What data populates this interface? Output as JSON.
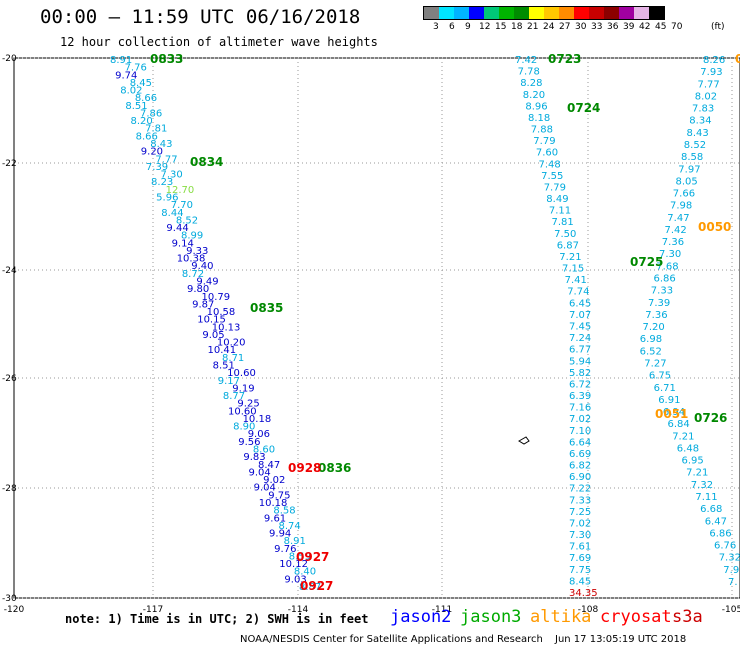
{
  "header": {
    "title": "00:00 – 11:59 UTC 06/16/2018",
    "subtitle": "12 hour collection of altimeter wave heights"
  },
  "legend": {
    "colors": [
      "#808080",
      "#00e5ff",
      "#00b4ff",
      "#0000ff",
      "#00c878",
      "#00b400",
      "#008c00",
      "#ffff00",
      "#ffc800",
      "#ff8c00",
      "#ff0000",
      "#c80000",
      "#8c0000",
      "#a000a0",
      "#e6b4e6",
      "#000000"
    ],
    "labels": [
      "3",
      "6",
      "9",
      "12",
      "15",
      "18",
      "21",
      "24",
      "27",
      "30",
      "33",
      "36",
      "39",
      "42",
      "45",
      "70",
      "(ft)"
    ]
  },
  "map": {
    "lat_labels": [
      "-20",
      "-22",
      "-24",
      "-26",
      "-28",
      "-30"
    ],
    "lon_labels": [
      "-120",
      "-117",
      "-114",
      "-111",
      "-108",
      "-105"
    ],
    "colors": {
      "cyan": "#00aadd",
      "blue": "#0000cc",
      "green": "#008800",
      "red": "#ee0000",
      "orange": "#ff9900",
      "lightgreen": "#88dd44",
      "darkred": "#cc0000"
    },
    "pass_labels": [
      {
        "t": "0833",
        "c": "green"
      },
      {
        "t": "0834",
        "c": "green"
      },
      {
        "t": "0835",
        "c": "green"
      },
      {
        "t": "0836",
        "c": "green"
      },
      {
        "t": "0928",
        "c": "red"
      },
      {
        "t": "0927",
        "c": "red"
      },
      {
        "t": "0927",
        "c": "red"
      },
      {
        "t": "0723",
        "c": "green"
      },
      {
        "t": "0724",
        "c": "green"
      },
      {
        "t": "0725",
        "c": "green"
      },
      {
        "t": "0726",
        "c": "green"
      },
      {
        "t": "0050",
        "c": "orange"
      },
      {
        "t": "0051",
        "c": "orange"
      },
      {
        "t": "0",
        "c": "orange"
      }
    ],
    "swh_track_a": [
      {
        "v": "8.91",
        "c": "cyan"
      },
      {
        "v": "7.76",
        "c": "cyan"
      },
      {
        "v": "9.74",
        "c": "blue"
      },
      {
        "v": "8.45",
        "c": "cyan"
      },
      {
        "v": "8.02",
        "c": "cyan"
      },
      {
        "v": "8.66",
        "c": "cyan"
      },
      {
        "v": "8.51",
        "c": "cyan"
      },
      {
        "v": "7.86",
        "c": "cyan"
      },
      {
        "v": "8.20",
        "c": "cyan"
      },
      {
        "v": "7.81",
        "c": "cyan"
      },
      {
        "v": "8.66",
        "c": "cyan"
      },
      {
        "v": "8.43",
        "c": "cyan"
      },
      {
        "v": "9.20",
        "c": "blue"
      },
      {
        "v": "7.77",
        "c": "cyan"
      },
      {
        "v": "7.39",
        "c": "cyan"
      },
      {
        "v": "7.30",
        "c": "cyan"
      },
      {
        "v": "8.23",
        "c": "cyan"
      },
      {
        "v": "12.70",
        "c": "lightgreen"
      },
      {
        "v": "5.96",
        "c": "cyan"
      },
      {
        "v": "7.70",
        "c": "cyan"
      },
      {
        "v": "8.44",
        "c": "cyan"
      },
      {
        "v": "8.52",
        "c": "cyan"
      },
      {
        "v": "9.44",
        "c": "blue"
      },
      {
        "v": "8.99",
        "c": "cyan"
      },
      {
        "v": "9.14",
        "c": "blue"
      },
      {
        "v": "9.33",
        "c": "blue"
      },
      {
        "v": "10.38",
        "c": "blue"
      },
      {
        "v": "9.40",
        "c": "blue"
      },
      {
        "v": "8.72",
        "c": "cyan"
      },
      {
        "v": "9.49",
        "c": "blue"
      },
      {
        "v": "9.80",
        "c": "blue"
      },
      {
        "v": "10.79",
        "c": "blue"
      },
      {
        "v": "9.87",
        "c": "blue"
      },
      {
        "v": "10.58",
        "c": "blue"
      },
      {
        "v": "10.15",
        "c": "blue"
      },
      {
        "v": "10.13",
        "c": "blue"
      },
      {
        "v": "9.05",
        "c": "blue"
      },
      {
        "v": "10.20",
        "c": "blue"
      },
      {
        "v": "10.41",
        "c": "blue"
      },
      {
        "v": "8.71",
        "c": "cyan"
      },
      {
        "v": "8.51",
        "c": "blue"
      },
      {
        "v": "10.60",
        "c": "blue"
      },
      {
        "v": "9.17",
        "c": "cyan"
      },
      {
        "v": "9.19",
        "c": "blue"
      },
      {
        "v": "8.77",
        "c": "cyan"
      },
      {
        "v": "9.25",
        "c": "blue"
      },
      {
        "v": "10.60",
        "c": "blue"
      },
      {
        "v": "10.18",
        "c": "blue"
      },
      {
        "v": "8.90",
        "c": "cyan"
      },
      {
        "v": "9.06",
        "c": "blue"
      },
      {
        "v": "9.56",
        "c": "blue"
      },
      {
        "v": "8.60",
        "c": "cyan"
      },
      {
        "v": "9.83",
        "c": "blue"
      },
      {
        "v": "8.47",
        "c": "blue"
      },
      {
        "v": "9.04",
        "c": "blue"
      },
      {
        "v": "9.02",
        "c": "blue"
      },
      {
        "v": "9.04",
        "c": "blue"
      },
      {
        "v": "9.75",
        "c": "blue"
      },
      {
        "v": "10.18",
        "c": "blue"
      },
      {
        "v": "8.58",
        "c": "cyan"
      },
      {
        "v": "9.61",
        "c": "blue"
      },
      {
        "v": "8.74",
        "c": "cyan"
      },
      {
        "v": "9.94",
        "c": "blue"
      },
      {
        "v": "8.91",
        "c": "cyan"
      },
      {
        "v": "9.76",
        "c": "blue"
      },
      {
        "v": "8.59",
        "c": "cyan"
      },
      {
        "v": "10.12",
        "c": "blue"
      },
      {
        "v": "8.40",
        "c": "cyan"
      },
      {
        "v": "9.03",
        "c": "blue"
      },
      {
        "v": "8.87",
        "c": "cyan"
      }
    ],
    "swh_track_b": [
      {
        "v": "7.42",
        "c": "cyan"
      },
      {
        "v": "7.78",
        "c": "cyan"
      },
      {
        "v": "8.28",
        "c": "cyan"
      },
      {
        "v": "8.20",
        "c": "cyan"
      },
      {
        "v": "8.96",
        "c": "cyan"
      },
      {
        "v": "8.18",
        "c": "cyan"
      },
      {
        "v": "7.88",
        "c": "cyan"
      },
      {
        "v": "7.79",
        "c": "cyan"
      },
      {
        "v": "7.60",
        "c": "cyan"
      },
      {
        "v": "7.48",
        "c": "cyan"
      },
      {
        "v": "7.55",
        "c": "cyan"
      },
      {
        "v": "7.79",
        "c": "cyan"
      },
      {
        "v": "8.49",
        "c": "cyan"
      },
      {
        "v": "7.11",
        "c": "cyan"
      },
      {
        "v": "7.81",
        "c": "cyan"
      },
      {
        "v": "7.50",
        "c": "cyan"
      },
      {
        "v": "6.87",
        "c": "cyan"
      },
      {
        "v": "7.21",
        "c": "cyan"
      },
      {
        "v": "7.15",
        "c": "cyan"
      },
      {
        "v": "7.41",
        "c": "cyan"
      },
      {
        "v": "7.74",
        "c": "cyan"
      },
      {
        "v": "6.45",
        "c": "cyan"
      },
      {
        "v": "7.07",
        "c": "cyan"
      },
      {
        "v": "7.45",
        "c": "cyan"
      },
      {
        "v": "7.24",
        "c": "cyan"
      },
      {
        "v": "6.77",
        "c": "cyan"
      },
      {
        "v": "5.94",
        "c": "cyan"
      },
      {
        "v": "5.82",
        "c": "cyan"
      },
      {
        "v": "6.72",
        "c": "cyan"
      },
      {
        "v": "6.39",
        "c": "cyan"
      },
      {
        "v": "7.16",
        "c": "cyan"
      },
      {
        "v": "7.02",
        "c": "cyan"
      },
      {
        "v": "7.10",
        "c": "cyan"
      },
      {
        "v": "6.64",
        "c": "cyan"
      },
      {
        "v": "6.69",
        "c": "cyan"
      },
      {
        "v": "6.82",
        "c": "cyan"
      },
      {
        "v": "6.90",
        "c": "cyan"
      },
      {
        "v": "7.22",
        "c": "cyan"
      },
      {
        "v": "7.33",
        "c": "cyan"
      },
      {
        "v": "7.25",
        "c": "cyan"
      },
      {
        "v": "7.02",
        "c": "cyan"
      },
      {
        "v": "7.30",
        "c": "cyan"
      },
      {
        "v": "7.61",
        "c": "cyan"
      },
      {
        "v": "7.69",
        "c": "cyan"
      },
      {
        "v": "7.75",
        "c": "cyan"
      },
      {
        "v": "8.45",
        "c": "cyan"
      },
      {
        "v": "34.35",
        "c": "darkred"
      }
    ],
    "swh_track_c": [
      {
        "v": "8.26",
        "c": "cyan"
      },
      {
        "v": "7.93",
        "c": "cyan"
      },
      {
        "v": "7.77",
        "c": "cyan"
      },
      {
        "v": "8.02",
        "c": "cyan"
      },
      {
        "v": "7.83",
        "c": "cyan"
      },
      {
        "v": "8.34",
        "c": "cyan"
      },
      {
        "v": "8.43",
        "c": "cyan"
      },
      {
        "v": "8.52",
        "c": "cyan"
      },
      {
        "v": "8.58",
        "c": "cyan"
      },
      {
        "v": "7.97",
        "c": "cyan"
      },
      {
        "v": "8.05",
        "c": "cyan"
      },
      {
        "v": "7.66",
        "c": "cyan"
      },
      {
        "v": "7.98",
        "c": "cyan"
      },
      {
        "v": "7.47",
        "c": "cyan"
      },
      {
        "v": "7.42",
        "c": "cyan"
      },
      {
        "v": "7.36",
        "c": "cyan"
      },
      {
        "v": "7.30",
        "c": "cyan"
      },
      {
        "v": "7.68",
        "c": "cyan"
      },
      {
        "v": "6.86",
        "c": "cyan"
      },
      {
        "v": "7.33",
        "c": "cyan"
      },
      {
        "v": "7.39",
        "c": "cyan"
      },
      {
        "v": "7.36",
        "c": "cyan"
      },
      {
        "v": "7.20",
        "c": "cyan"
      },
      {
        "v": "6.98",
        "c": "cyan"
      },
      {
        "v": "6.52",
        "c": "cyan"
      },
      {
        "v": "7.27",
        "c": "cyan"
      },
      {
        "v": "6.75",
        "c": "cyan"
      },
      {
        "v": "6.71",
        "c": "cyan"
      },
      {
        "v": "6.91",
        "c": "cyan"
      },
      {
        "v": "6.94",
        "c": "cyan"
      },
      {
        "v": "6.84",
        "c": "cyan"
      },
      {
        "v": "7.21",
        "c": "cyan"
      },
      {
        "v": "6.48",
        "c": "cyan"
      },
      {
        "v": "6.95",
        "c": "cyan"
      },
      {
        "v": "7.21",
        "c": "cyan"
      },
      {
        "v": "7.32",
        "c": "cyan"
      },
      {
        "v": "7.11",
        "c": "cyan"
      },
      {
        "v": "6.68",
        "c": "cyan"
      },
      {
        "v": "6.47",
        "c": "cyan"
      },
      {
        "v": "6.86",
        "c": "cyan"
      },
      {
        "v": "6.76",
        "c": "cyan"
      },
      {
        "v": "7.32",
        "c": "cyan"
      },
      {
        "v": "7.9",
        "c": "cyan"
      },
      {
        "v": "7.",
        "c": "cyan"
      }
    ],
    "feature_icon": "island-outline-icon"
  },
  "footer": {
    "note": "note: 1) Time is in UTC; 2) SWH is in feet",
    "satellites": [
      {
        "name": "jason2",
        "color": "#0000ff"
      },
      {
        "name": "jason3",
        "color": "#00aa00"
      },
      {
        "name": "altika",
        "color": "#ff9900"
      },
      {
        "name": "cryosat",
        "color": "#ff0000"
      },
      {
        "name": "s3a",
        "color": "#cc0000"
      }
    ],
    "credit": "NOAA/NESDIS Center for Satellite Applications and Research",
    "timestamp": "Jun 17 13:05:19 UTC 2018"
  }
}
